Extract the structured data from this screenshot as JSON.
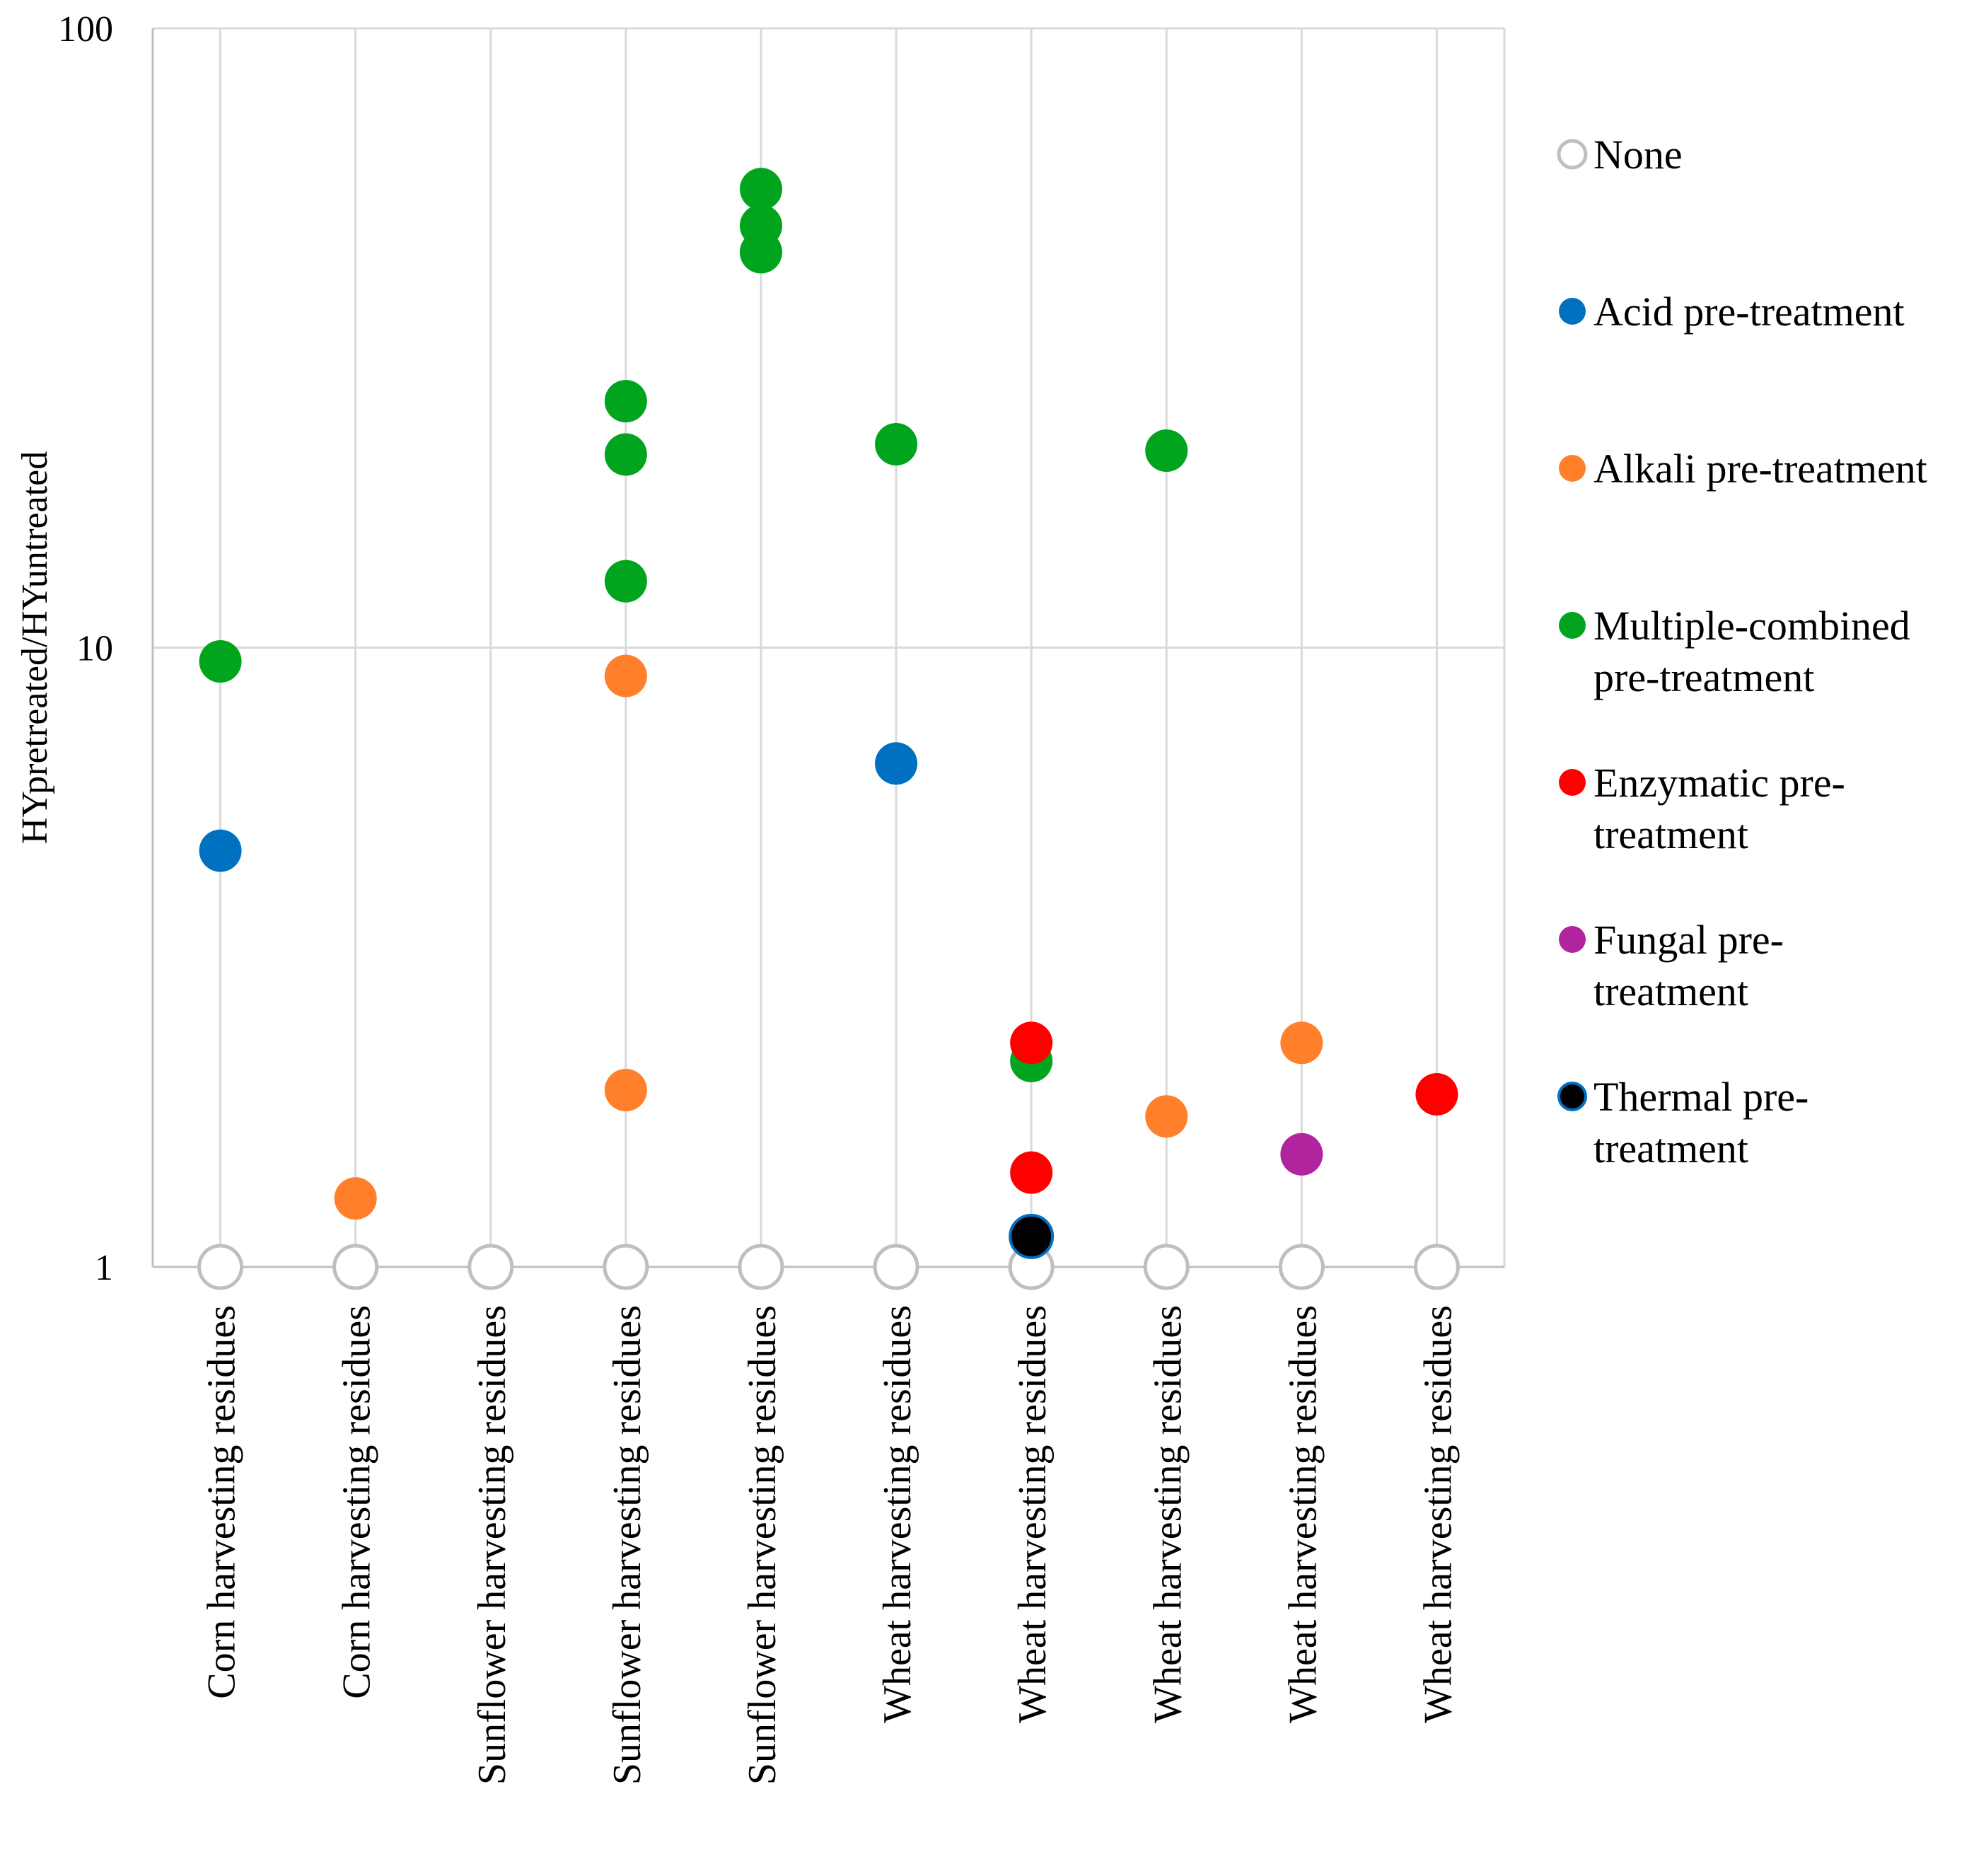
{
  "chart_data": {
    "type": "scatter",
    "title": "",
    "ylabel": "HYpretreated/HYuntreated",
    "xlabel": "",
    "yscale": "log",
    "ylim": [
      1,
      100
    ],
    "yticks": [
      {
        "value": 1,
        "label": "1"
      },
      {
        "value": 10,
        "label": "10"
      },
      {
        "value": 100,
        "label": "100"
      }
    ],
    "grid": true,
    "legend_position": "right",
    "categories": [
      "Corn harvesting residues",
      "Corn harvesting residues",
      "Sunflower harvesting residues",
      "Sunflower harvesting residues",
      "Sunflower harvesting residues",
      "Wheat harvesting residues",
      "Wheat harvesting residues",
      "Wheat harvesting residues",
      "Wheat harvesting residues",
      "Wheat harvesting residues"
    ],
    "series": [
      {
        "name": "None",
        "legend_lines": [
          "None"
        ],
        "color": "#ffffff",
        "stroke": "#bfbfbf",
        "hollow": true,
        "points": [
          [
            0,
            1
          ],
          [
            1,
            1
          ],
          [
            2,
            1
          ],
          [
            3,
            1
          ],
          [
            4,
            1
          ],
          [
            5,
            1
          ],
          [
            6,
            1
          ],
          [
            7,
            1
          ],
          [
            8,
            1
          ],
          [
            9,
            1
          ]
        ]
      },
      {
        "name": "Acid pre-treatment",
        "legend_lines": [
          "Acid pre-treatment"
        ],
        "color": "#0070c0",
        "points": [
          [
            0,
            4.7
          ],
          [
            5,
            6.5
          ]
        ]
      },
      {
        "name": "Alkali pre-treatment",
        "legend_lines": [
          "Alkali pre-treatment"
        ],
        "color": "#ff7f2a",
        "points": [
          [
            1,
            1.29
          ],
          [
            3,
            9.0
          ],
          [
            3,
            1.93
          ],
          [
            7,
            1.75
          ],
          [
            8,
            2.3
          ]
        ]
      },
      {
        "name": "Multiple-combined pre-treatment",
        "legend_lines": [
          "Multiple-combined",
          "pre-treatment"
        ],
        "color": "#00a51d",
        "points": [
          [
            0,
            9.5
          ],
          [
            3,
            25.0
          ],
          [
            3,
            20.5
          ],
          [
            3,
            12.8
          ],
          [
            4,
            55.0
          ],
          [
            4,
            48.0
          ],
          [
            4,
            43.5
          ],
          [
            5,
            21.3
          ],
          [
            6,
            2.15
          ],
          [
            7,
            20.8
          ]
        ]
      },
      {
        "name": "Enzymatic pre-treatment",
        "legend_lines": [
          "Enzymatic pre-",
          "treatment"
        ],
        "color": "#ff0000",
        "points": [
          [
            6,
            2.3
          ],
          [
            6,
            1.42
          ],
          [
            9,
            1.9
          ]
        ]
      },
      {
        "name": "Fungal pre-treatment",
        "legend_lines": [
          "Fungal pre-",
          "treatment"
        ],
        "color": "#b0249e",
        "points": [
          [
            8,
            1.52
          ]
        ]
      },
      {
        "name": "Thermal pre-treatment",
        "legend_lines": [
          "Thermal pre-",
          "treatment"
        ],
        "color": "#000000",
        "stroke": "#0070c0",
        "points": [
          [
            6,
            1.12
          ]
        ]
      }
    ]
  }
}
